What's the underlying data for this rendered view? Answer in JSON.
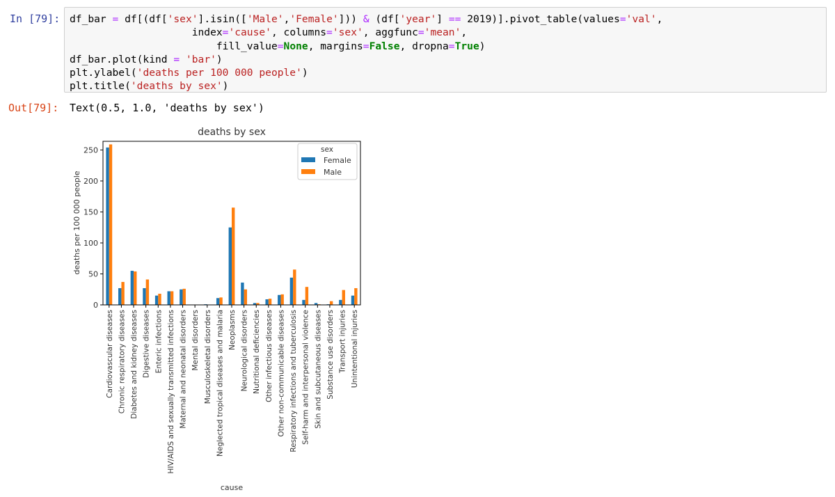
{
  "cell": {
    "in_prompt": "In [79]:",
    "out_prompt": "Out[79]:",
    "output_text": "Text(0.5, 1.0, 'deaths by sex')"
  },
  "colors": {
    "Female": "#1f77b4",
    "Male": "#ff7f0e"
  },
  "chart_data": {
    "type": "bar",
    "title": "deaths by sex",
    "xlabel": "cause",
    "ylabel": "deaths per 100 000 people",
    "ylim": [
      0,
      264
    ],
    "yticks": [
      0,
      50,
      100,
      150,
      200,
      250
    ],
    "legend": {
      "title": "sex",
      "placement": "top-right"
    },
    "grid": false,
    "categories": [
      "Cardiovascular diseases",
      "Chronic respiratory diseases",
      "Diabetes and kidney diseases",
      "Digestive diseases",
      "Enteric infections",
      "HIV/AIDS and sexually transmitted infections",
      "Maternal and neonatal disorders",
      "Mental disorders",
      "Musculoskeletal disorders",
      "Neglected tropical diseases and malaria",
      "Neoplasms",
      "Neurological disorders",
      "Nutritional deficiencies",
      "Other infectious diseases",
      "Other non-communicable diseases",
      "Respiratory infections and tuberculosis",
      "Self-harm and interpersonal violence",
      "Skin and subcutaneous diseases",
      "Substance use disorders",
      "Transport injuries",
      "Unintentional injuries"
    ],
    "series": [
      {
        "name": "Female",
        "values": [
          254,
          27,
          55,
          27,
          15,
          22,
          25,
          0,
          1,
          11,
          125,
          36,
          3,
          9,
          16,
          44,
          8,
          3,
          1,
          8,
          15
        ]
      },
      {
        "name": "Male",
        "values": [
          259,
          37,
          54,
          41,
          18,
          22,
          26,
          0,
          0,
          12,
          157,
          25,
          3,
          10,
          17,
          57,
          29,
          1,
          6,
          24,
          27
        ]
      }
    ]
  }
}
